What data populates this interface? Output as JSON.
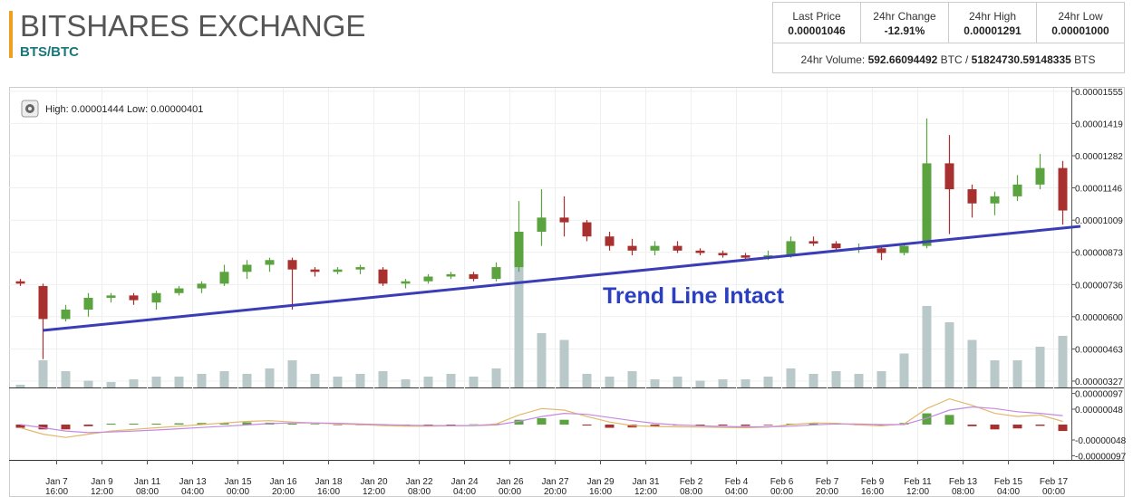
{
  "header": {
    "title": "BITSHARES EXCHANGE",
    "pair": "BTS/BTC"
  },
  "stats": [
    {
      "label": "Last Price",
      "value": "0.00001046"
    },
    {
      "label": "24hr Change",
      "value": "-12.91%"
    },
    {
      "label": "24hr High",
      "value": "0.00001291"
    },
    {
      "label": "24hr Low",
      "value": "0.00001000"
    }
  ],
  "volume_line": {
    "label": "24hr Volume:",
    "btc": "592.66094492",
    "btc_unit": "BTC /",
    "bts": "51824730.59148335",
    "bts_unit": "BTS"
  },
  "chart_info": {
    "high_label": "High:",
    "high": "0.00001444",
    "low_label": "Low:",
    "low": "0.00000401"
  },
  "chart_data": {
    "type": "candlestick",
    "annotation": "Trend Line Intact",
    "up_color": "#5aa33e",
    "down_color": "#a8302e",
    "open": [
      7.5e-06,
      7.3e-06,
      5.9e-06,
      6.3e-06,
      6.8e-06,
      6.9e-06,
      6.6e-06,
      7e-06,
      7.2e-06,
      7.4e-06,
      7.9e-06,
      8.2e-06,
      8.4e-06,
      8e-06,
      7.9e-06,
      8e-06,
      8e-06,
      7.4e-06,
      7.5e-06,
      7.7e-06,
      7.8e-06,
      7.6e-06,
      8.1e-06,
      9.6e-06,
      1.02e-05,
      1e-05,
      9.4e-06,
      9e-06,
      8.8e-06,
      9e-06,
      8.8e-06,
      8.7e-06,
      8.6e-06,
      8.5e-06,
      8.6e-06,
      9.2e-06,
      9.1e-06,
      8.9e-06,
      8.9e-06,
      8.7e-06,
      9e-06,
      1.25e-05,
      1.14e-05,
      1.08e-05,
      1.11e-05,
      1.16e-05,
      1.23e-05
    ],
    "high": [
      7.6e-06,
      7.4e-06,
      6.5e-06,
      7e-06,
      7e-06,
      7e-06,
      7.1e-06,
      7.3e-06,
      7.5e-06,
      8.2e-06,
      8.4e-06,
      8.5e-06,
      8.5e-06,
      8.1e-06,
      8.1e-06,
      8.2e-06,
      8.1e-06,
      7.6e-06,
      7.8e-06,
      7.9e-06,
      7.9e-06,
      8.3e-06,
      1.09e-05,
      1.14e-05,
      1.11e-05,
      1.01e-05,
      9.6e-06,
      9.3e-06,
      9.2e-06,
      9.2e-06,
      8.9e-06,
      8.8e-06,
      8.7e-06,
      8.8e-06,
      9.4e-06,
      9.4e-06,
      9.2e-06,
      9.1e-06,
      9e-06,
      9.1e-06,
      1.44e-05,
      1.37e-05,
      1.16e-05,
      1.13e-05,
      1.2e-05,
      1.29e-05,
      1.26e-05
    ],
    "low": [
      7.3e-06,
      4.2e-06,
      5.8e-06,
      6e-06,
      6.6e-06,
      6.5e-06,
      6.3e-06,
      6.9e-06,
      7e-06,
      7.3e-06,
      7.6e-06,
      7.9e-06,
      6.3e-06,
      7.7e-06,
      7.8e-06,
      7.8e-06,
      7.3e-06,
      7.2e-06,
      7.4e-06,
      7.6e-06,
      7.5e-06,
      7.5e-06,
      7.9e-06,
      9e-06,
      9.4e-06,
      9.2e-06,
      8.8e-06,
      8.6e-06,
      8.6e-06,
      8.7e-06,
      8.6e-06,
      8.5e-06,
      8.4e-06,
      8.4e-06,
      8.5e-06,
      9e-06,
      8.8e-06,
      8.7e-06,
      8.4e-06,
      8.6e-06,
      8.9e-06,
      9.5e-06,
      1.02e-05,
      1.03e-05,
      1.09e-05,
      1.14e-05,
      9.9e-06
    ],
    "close": [
      7.4e-06,
      5.9e-06,
      6.3e-06,
      6.8e-06,
      6.9e-06,
      6.7e-06,
      7e-06,
      7.2e-06,
      7.4e-06,
      7.9e-06,
      8.2e-06,
      8.4e-06,
      8e-06,
      7.9e-06,
      8e-06,
      8.1e-06,
      7.4e-06,
      7.5e-06,
      7.7e-06,
      7.8e-06,
      7.6e-06,
      8.1e-06,
      9.6e-06,
      1.02e-05,
      1e-05,
      9.4e-06,
      9e-06,
      8.8e-06,
      9e-06,
      8.8e-06,
      8.7e-06,
      8.6e-06,
      8.5e-06,
      8.6e-06,
      9.2e-06,
      9.1e-06,
      8.9e-06,
      8.9e-06,
      8.7e-06,
      9e-06,
      1.25e-05,
      1.14e-05,
      1.08e-05,
      1.11e-05,
      1.16e-05,
      1.23e-05,
      1.05e-05
    ],
    "ylim": [
      3e-06,
      1.57e-05
    ],
    "yticks": [
      {
        "value": 1.555e-05,
        "label": "0.00001555"
      },
      {
        "value": 1.419e-05,
        "label": "0.00001419"
      },
      {
        "value": 1.282e-05,
        "label": "0.00001282"
      },
      {
        "value": 1.146e-05,
        "label": "0.00001146"
      },
      {
        "value": 1.009e-05,
        "label": "0.00001009"
      },
      {
        "value": 8.73e-06,
        "label": "0.00000873"
      },
      {
        "value": 7.36e-06,
        "label": "0.00000736"
      },
      {
        "value": 6e-06,
        "label": "0.00000600"
      },
      {
        "value": 4.63e-06,
        "label": "0.00000463"
      },
      {
        "value": 3.27e-06,
        "label": "0.00000327"
      }
    ],
    "xlim": [
      -0.5,
      46.3
    ],
    "xticks": [
      {
        "value": 1.6,
        "label": "Jan 7",
        "time": "16:00"
      },
      {
        "value": 3.6,
        "label": "Jan 9",
        "time": "12:00"
      },
      {
        "value": 5.6,
        "label": "Jan 11",
        "time": "08:00"
      },
      {
        "value": 7.6,
        "label": "Jan 13",
        "time": "04:00"
      },
      {
        "value": 9.6,
        "label": "Jan 15",
        "time": "00:00"
      },
      {
        "value": 11.6,
        "label": "Jan 16",
        "time": "20:00"
      },
      {
        "value": 13.6,
        "label": "Jan 18",
        "time": "16:00"
      },
      {
        "value": 15.6,
        "label": "Jan 20",
        "time": "12:00"
      },
      {
        "value": 17.6,
        "label": "Jan 22",
        "time": "08:00"
      },
      {
        "value": 19.6,
        "label": "Jan 24",
        "time": "04:00"
      },
      {
        "value": 21.6,
        "label": "Jan 26",
        "time": "00:00"
      },
      {
        "value": 23.6,
        "label": "Jan 27",
        "time": "20:00"
      },
      {
        "value": 25.6,
        "label": "Jan 29",
        "time": "16:00"
      },
      {
        "value": 27.6,
        "label": "Jan 31",
        "time": "12:00"
      },
      {
        "value": 29.6,
        "label": "Feb 2",
        "time": "08:00"
      },
      {
        "value": 31.6,
        "label": "Feb 4",
        "time": "04:00"
      },
      {
        "value": 33.6,
        "label": "Feb 6",
        "time": "00:00"
      },
      {
        "value": 35.6,
        "label": "Feb 7",
        "time": "20:00"
      },
      {
        "value": 37.6,
        "label": "Feb 9",
        "time": "16:00"
      },
      {
        "value": 39.6,
        "label": "Feb 11",
        "time": "12:00"
      },
      {
        "value": 41.6,
        "label": "Feb 13",
        "time": "08:00"
      },
      {
        "value": 43.6,
        "label": "Feb 15",
        "time": "04:00"
      },
      {
        "value": 45.6,
        "label": "Feb 17",
        "time": "00:00"
      }
    ],
    "grid": true,
    "volume": {
      "color": "#b9c9c9",
      "ylim": [
        0,
        100
      ],
      "values": [
        2,
        20,
        12,
        5,
        4,
        6,
        8,
        8,
        10,
        12,
        10,
        14,
        20,
        10,
        8,
        10,
        12,
        6,
        8,
        10,
        8,
        14,
        95,
        40,
        35,
        10,
        8,
        12,
        6,
        8,
        5,
        6,
        6,
        8,
        14,
        10,
        12,
        10,
        12,
        25,
        60,
        48,
        35,
        20,
        20,
        30,
        38
      ]
    },
    "macd": {
      "color": "#e2b86a",
      "values": [
        -1e-07,
        -3e-07,
        -4e-07,
        -3e-07,
        -2e-07,
        -1.5e-07,
        -1e-07,
        -5e-08,
        0,
        5e-08,
        1e-07,
        1.2e-07,
        8e-08,
        5e-08,
        2e-08,
        0,
        -3e-08,
        -5e-08,
        -5e-08,
        -4e-08,
        -3e-08,
        2e-08,
        3e-07,
        5e-07,
        4.5e-07,
        2.5e-07,
        8e-08,
        -3e-08,
        -6e-08,
        -7e-08,
        -8e-08,
        -9e-08,
        -1e-07,
        -8e-08,
        0,
        5e-08,
        4e-08,
        -1e-08,
        -4e-08,
        2e-08,
        5e-07,
        8e-07,
        6e-07,
        3.5e-07,
        2.5e-07,
        3e-07,
        1e-07
      ]
    },
    "signal": {
      "color": "#c48ae0",
      "values": [
        0,
        -1e-07,
        -2e-07,
        -2.5e-07,
        -2.3e-07,
        -2e-07,
        -1.7e-07,
        -1.3e-07,
        -9e-08,
        -5e-08,
        -1e-08,
        3e-08,
        5e-08,
        5e-08,
        4e-08,
        2e-08,
        0,
        -2e-08,
        -3e-08,
        -3e-08,
        -3e-08,
        -1e-08,
        1e-07,
        2.5e-07,
        3.5e-07,
        3.2e-07,
        2.2e-07,
        1.2e-07,
        4e-08,
        -1e-08,
        -4e-08,
        -6e-08,
        -7e-08,
        -7e-08,
        -5e-08,
        -1e-08,
        2e-08,
        2e-08,
        0,
        0,
        2e-07,
        4.5e-07,
        5.5e-07,
        5e-07,
        4e-07,
        3.5e-07,
        2.8e-07
      ]
    },
    "histogram": {
      "values": [
        -1e-07,
        -1.5e-07,
        -1.5e-07,
        -5e-08,
        3e-08,
        3e-08,
        3e-08,
        4e-08,
        5e-08,
        5e-08,
        7e-08,
        6e-08,
        3e-08,
        2e-08,
        -1e-08,
        -2e-08,
        -3e-08,
        -3e-08,
        -2e-08,
        -1e-08,
        1e-08,
        3e-08,
        1.5e-07,
        2e-07,
        1.5e-07,
        -3e-08,
        -1e-07,
        -9e-08,
        -5e-08,
        -3e-08,
        -3e-08,
        -3e-08,
        -4e-08,
        -2e-08,
        3e-08,
        5e-08,
        3e-08,
        -2e-08,
        -3e-08,
        5e-08,
        3.5e-07,
        3e-07,
        -5e-08,
        -1.5e-07,
        -1.2e-07,
        -4e-08,
        -2e-07
      ]
    },
    "y2lim": [
      -1.1e-06,
      1.1e-06
    ],
    "y2ticks": [
      {
        "value": 9.7e-07,
        "label": "0.00000097"
      },
      {
        "value": 4.8e-07,
        "label": "0.00000048"
      },
      {
        "value": -4.8e-07,
        "label": "-0.00000048"
      },
      {
        "value": -9.7e-07,
        "label": "-0.00000097"
      }
    ]
  }
}
